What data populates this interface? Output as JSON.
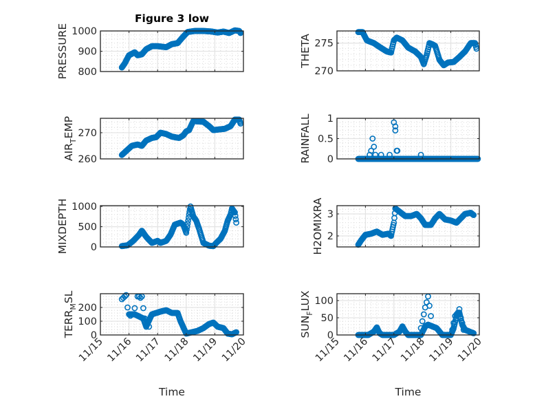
{
  "figure_title": "Figure 3 low",
  "marker_color": "#0072BD",
  "chart_data": [
    {
      "type": "scatter",
      "id": "pressure",
      "ylabel": "PRESSURE",
      "ylabel_sub": null,
      "title": "Figure 3 low",
      "ylim": [
        800,
        1000
      ],
      "yticks": [
        800,
        900,
        1000
      ],
      "yticklabels": [
        "800",
        "900",
        "1000"
      ],
      "xlim": [
        15,
        20
      ],
      "xticks": [
        15,
        16,
        17,
        18,
        19,
        20
      ],
      "xticklabels": [],
      "xlabel": "",
      "knots": [
        [
          15.75,
          820
        ],
        [
          15.85,
          840
        ],
        [
          16.0,
          880
        ],
        [
          16.2,
          895
        ],
        [
          16.3,
          880
        ],
        [
          16.45,
          885
        ],
        [
          16.6,
          910
        ],
        [
          16.8,
          925
        ],
        [
          17.0,
          925
        ],
        [
          17.3,
          920
        ],
        [
          17.5,
          935
        ],
        [
          17.7,
          940
        ],
        [
          17.85,
          965
        ],
        [
          18.05,
          995
        ],
        [
          18.3,
          1000
        ],
        [
          18.6,
          1000
        ],
        [
          18.9,
          997
        ],
        [
          19.1,
          992
        ],
        [
          19.3,
          997
        ],
        [
          19.5,
          990
        ],
        [
          19.7,
          1003
        ],
        [
          19.85,
          1000
        ],
        [
          19.9,
          990
        ]
      ]
    },
    {
      "type": "scatter",
      "id": "theta",
      "ylabel": "THETA",
      "ylabel_sub": null,
      "title": "",
      "ylim": [
        270,
        277.2
      ],
      "yticks": [
        270,
        275
      ],
      "yticklabels": [
        "270",
        "275"
      ],
      "xlim": [
        15,
        20
      ],
      "xticks": [
        15,
        16,
        17,
        18,
        19,
        20
      ],
      "xticklabels": [],
      "xlabel": "",
      "knots": [
        [
          15.75,
          277
        ],
        [
          15.9,
          277
        ],
        [
          16.05,
          275.5
        ],
        [
          16.3,
          275
        ],
        [
          16.5,
          274.3
        ],
        [
          16.75,
          273.5
        ],
        [
          16.9,
          273.3
        ],
        [
          17.0,
          275.5
        ],
        [
          17.1,
          276
        ],
        [
          17.3,
          275.5
        ],
        [
          17.5,
          274.2
        ],
        [
          17.75,
          273.5
        ],
        [
          17.95,
          272.5
        ],
        [
          18.05,
          271.2
        ],
        [
          18.15,
          272.8
        ],
        [
          18.25,
          275
        ],
        [
          18.35,
          274.8
        ],
        [
          18.45,
          274.5
        ],
        [
          18.6,
          272
        ],
        [
          18.75,
          271
        ],
        [
          18.9,
          271.5
        ],
        [
          19.1,
          271.6
        ],
        [
          19.3,
          272.5
        ],
        [
          19.5,
          273.5
        ],
        [
          19.7,
          275
        ],
        [
          19.85,
          275
        ],
        [
          19.9,
          274
        ]
      ]
    },
    {
      "type": "scatter",
      "id": "air_temp",
      "ylabel": "AIR",
      "ylabel_sub": "T",
      "ylabel_suffix": "EMP",
      "title": "",
      "ylim": [
        260,
        275.5
      ],
      "yticks": [
        260,
        270
      ],
      "yticklabels": [
        "260",
        "270"
      ],
      "xlim": [
        15,
        20
      ],
      "xticks": [
        15,
        16,
        17,
        18,
        19,
        20
      ],
      "xticklabels": [],
      "xlabel": "",
      "knots": [
        [
          15.75,
          261.5
        ],
        [
          15.9,
          263
        ],
        [
          16.1,
          265
        ],
        [
          16.3,
          265.5
        ],
        [
          16.45,
          265
        ],
        [
          16.6,
          267
        ],
        [
          16.8,
          268
        ],
        [
          16.95,
          268.3
        ],
        [
          17.1,
          270
        ],
        [
          17.3,
          269.5
        ],
        [
          17.5,
          268.5
        ],
        [
          17.75,
          268
        ],
        [
          17.9,
          269
        ],
        [
          18.0,
          270.5
        ],
        [
          18.1,
          271
        ],
        [
          18.25,
          274.5
        ],
        [
          18.4,
          274.3
        ],
        [
          18.6,
          274.2
        ],
        [
          18.8,
          272.5
        ],
        [
          18.95,
          271
        ],
        [
          19.1,
          271.2
        ],
        [
          19.35,
          271.5
        ],
        [
          19.55,
          272.5
        ],
        [
          19.7,
          275
        ],
        [
          19.85,
          275
        ],
        [
          19.9,
          273.5
        ]
      ]
    },
    {
      "type": "scatter",
      "id": "rainfall",
      "ylabel": "RAINFALL",
      "ylabel_sub": null,
      "title": "",
      "ylim": [
        0,
        1
      ],
      "yticks": [
        0,
        0.5,
        1
      ],
      "yticklabels": [
        "0",
        "0.5",
        "1"
      ],
      "xlim": [
        15,
        20
      ],
      "xticks": [
        15,
        16,
        17,
        18,
        19,
        20
      ],
      "xticklabels": [],
      "xlabel": "",
      "knots": [
        [
          15.75,
          0
        ],
        [
          16.2,
          0
        ],
        [
          16.4,
          0
        ],
        [
          16.6,
          0
        ],
        [
          16.9,
          0
        ],
        [
          17.2,
          0
        ],
        [
          17.6,
          0
        ],
        [
          18.0,
          0
        ],
        [
          18.4,
          0
        ],
        [
          18.8,
          0
        ],
        [
          19.2,
          0
        ],
        [
          19.6,
          0
        ],
        [
          19.95,
          0
        ]
      ],
      "extra_points": [
        [
          16.15,
          0.1
        ],
        [
          16.2,
          0.2
        ],
        [
          16.25,
          0.5
        ],
        [
          16.3,
          0.3
        ],
        [
          16.35,
          0.1
        ],
        [
          16.55,
          0.1
        ],
        [
          16.85,
          0.1
        ],
        [
          17.0,
          0.9
        ],
        [
          17.05,
          0.8
        ],
        [
          17.05,
          0.7
        ],
        [
          17.1,
          0.2
        ],
        [
          17.12,
          0.2
        ],
        [
          17.95,
          0.1
        ]
      ]
    },
    {
      "type": "scatter",
      "id": "mixdepth",
      "ylabel": "MIXDEPTH",
      "ylabel_sub": null,
      "title": "",
      "ylim": [
        0,
        1020
      ],
      "yticks": [
        0,
        500,
        1000
      ],
      "yticklabels": [
        "0",
        "500",
        "1000"
      ],
      "xlim": [
        15,
        20
      ],
      "xticks": [
        15,
        16,
        17,
        18,
        19,
        20
      ],
      "xticklabels": [],
      "xlabel": "",
      "knots": [
        [
          15.75,
          20
        ],
        [
          15.95,
          40
        ],
        [
          16.15,
          150
        ],
        [
          16.35,
          300
        ],
        [
          16.45,
          400
        ],
        [
          16.6,
          250
        ],
        [
          16.8,
          100
        ],
        [
          17.0,
          150
        ],
        [
          17.1,
          100
        ],
        [
          17.3,
          150
        ],
        [
          17.45,
          300
        ],
        [
          17.6,
          550
        ],
        [
          17.8,
          600
        ],
        [
          17.9,
          550
        ],
        [
          18.0,
          350
        ],
        [
          18.1,
          800
        ],
        [
          18.15,
          1000
        ],
        [
          18.25,
          750
        ],
        [
          18.35,
          650
        ],
        [
          18.45,
          450
        ],
        [
          18.6,
          100
        ],
        [
          18.8,
          30
        ],
        [
          18.95,
          20
        ],
        [
          19.05,
          100
        ],
        [
          19.2,
          200
        ],
        [
          19.35,
          400
        ],
        [
          19.45,
          650
        ],
        [
          19.55,
          800
        ],
        [
          19.6,
          950
        ],
        [
          19.7,
          850
        ],
        [
          19.75,
          600
        ]
      ]
    },
    {
      "type": "scatter",
      "id": "h2omixra",
      "ylabel": "H2OMIXRA",
      "ylabel_sub": null,
      "title": "",
      "ylim": [
        1.5,
        3.375
      ],
      "yticks": [
        2,
        3
      ],
      "yticklabels": [
        "2",
        "3"
      ],
      "xlim": [
        15,
        20
      ],
      "xticks": [
        15,
        16,
        17,
        18,
        19,
        20
      ],
      "xticklabels": [],
      "xlabel": "",
      "knots": [
        [
          15.75,
          1.6
        ],
        [
          15.85,
          1.8
        ],
        [
          16.0,
          2.05
        ],
        [
          16.2,
          2.1
        ],
        [
          16.4,
          2.2
        ],
        [
          16.6,
          2.05
        ],
        [
          16.8,
          2.1
        ],
        [
          16.9,
          2.0
        ],
        [
          16.95,
          2.3
        ],
        [
          17.0,
          2.6
        ],
        [
          17.05,
          3.25
        ],
        [
          17.2,
          3.1
        ],
        [
          17.4,
          2.9
        ],
        [
          17.6,
          2.9
        ],
        [
          17.8,
          3.0
        ],
        [
          17.95,
          2.8
        ],
        [
          18.1,
          2.5
        ],
        [
          18.3,
          2.5
        ],
        [
          18.45,
          2.8
        ],
        [
          18.6,
          3.0
        ],
        [
          18.8,
          2.75
        ],
        [
          19.0,
          2.7
        ],
        [
          19.2,
          2.6
        ],
        [
          19.35,
          2.8
        ],
        [
          19.5,
          3.0
        ],
        [
          19.7,
          3.05
        ],
        [
          19.8,
          2.95
        ]
      ]
    },
    {
      "type": "scatter",
      "id": "terr_msl",
      "ylabel": "TERR",
      "ylabel_sub": "M",
      "ylabel_suffix": "SL",
      "title": "",
      "ylim": [
        0,
        300
      ],
      "yticks": [
        0,
        100,
        200
      ],
      "yticklabels": [
        "0",
        "100",
        "200"
      ],
      "xlim": [
        15,
        20
      ],
      "xticks": [
        15,
        16,
        17,
        18,
        19,
        20
      ],
      "xticklabels": [
        "11/15",
        "11/16",
        "11/17",
        "11/18",
        "11/19",
        "11/20"
      ],
      "xlabel": "Time",
      "knots": [
        [
          16.0,
          150
        ],
        [
          16.2,
          150
        ],
        [
          16.5,
          120
        ],
        [
          16.6,
          60
        ],
        [
          16.8,
          150
        ],
        [
          17.1,
          170
        ],
        [
          17.3,
          180
        ],
        [
          17.5,
          160
        ],
        [
          17.7,
          160
        ],
        [
          17.8,
          100
        ],
        [
          18.0,
          10
        ],
        [
          18.2,
          20
        ],
        [
          18.4,
          30
        ],
        [
          18.6,
          50
        ],
        [
          18.8,
          80
        ],
        [
          18.95,
          90
        ],
        [
          19.1,
          60
        ],
        [
          19.3,
          50
        ],
        [
          19.45,
          10
        ],
        [
          19.6,
          5
        ],
        [
          19.75,
          20
        ]
      ],
      "extra_points": [
        [
          15.75,
          260
        ],
        [
          15.8,
          270
        ],
        [
          15.85,
          280
        ],
        [
          15.9,
          290
        ],
        [
          15.95,
          200
        ],
        [
          16.05,
          140
        ],
        [
          16.2,
          195
        ],
        [
          16.3,
          280
        ],
        [
          16.35,
          280
        ],
        [
          16.4,
          270
        ],
        [
          16.45,
          280
        ],
        [
          16.5,
          195
        ],
        [
          16.55,
          120
        ],
        [
          16.65,
          80
        ],
        [
          16.7,
          60
        ]
      ]
    },
    {
      "type": "scatter",
      "id": "sun_flux",
      "ylabel": "SUN",
      "ylabel_sub": "F",
      "ylabel_suffix": "LUX",
      "title": "",
      "ylim": [
        0,
        120
      ],
      "yticks": [
        0,
        50,
        100
      ],
      "yticklabels": [
        "0",
        "50",
        "100"
      ],
      "xlim": [
        15,
        20
      ],
      "xticks": [
        15,
        16,
        17,
        18,
        19,
        20
      ],
      "xticklabels": [
        "11/15",
        "11/16",
        "11/17",
        "11/18",
        "11/19",
        "11/20"
      ],
      "xlabel": "Time",
      "knots": [
        [
          15.75,
          0
        ],
        [
          16.1,
          0
        ],
        [
          16.3,
          10
        ],
        [
          16.4,
          22
        ],
        [
          16.5,
          5
        ],
        [
          16.6,
          0
        ],
        [
          17.0,
          0
        ],
        [
          17.2,
          10
        ],
        [
          17.3,
          25
        ],
        [
          17.4,
          10
        ],
        [
          17.5,
          0
        ],
        [
          17.8,
          0
        ],
        [
          17.95,
          0
        ],
        [
          18.1,
          25
        ],
        [
          18.2,
          30
        ],
        [
          18.35,
          25
        ],
        [
          18.5,
          20
        ],
        [
          18.6,
          10
        ],
        [
          18.7,
          0
        ],
        [
          19.0,
          0
        ],
        [
          19.1,
          20
        ],
        [
          19.2,
          55
        ],
        [
          19.3,
          65
        ],
        [
          19.4,
          30
        ],
        [
          19.5,
          15
        ],
        [
          19.65,
          10
        ],
        [
          19.8,
          5
        ]
      ],
      "extra_points": [
        [
          17.95,
          20
        ],
        [
          18.0,
          40
        ],
        [
          18.05,
          60
        ],
        [
          18.1,
          80
        ],
        [
          18.15,
          95
        ],
        [
          18.2,
          112
        ],
        [
          18.25,
          85
        ],
        [
          18.3,
          55
        ],
        [
          18.35,
          25
        ],
        [
          19.05,
          15
        ],
        [
          19.1,
          35
        ],
        [
          19.15,
          55
        ],
        [
          19.2,
          60
        ],
        [
          19.25,
          65
        ],
        [
          19.3,
          75
        ],
        [
          19.35,
          50
        ],
        [
          19.4,
          35
        ],
        [
          19.45,
          15
        ]
      ]
    }
  ]
}
